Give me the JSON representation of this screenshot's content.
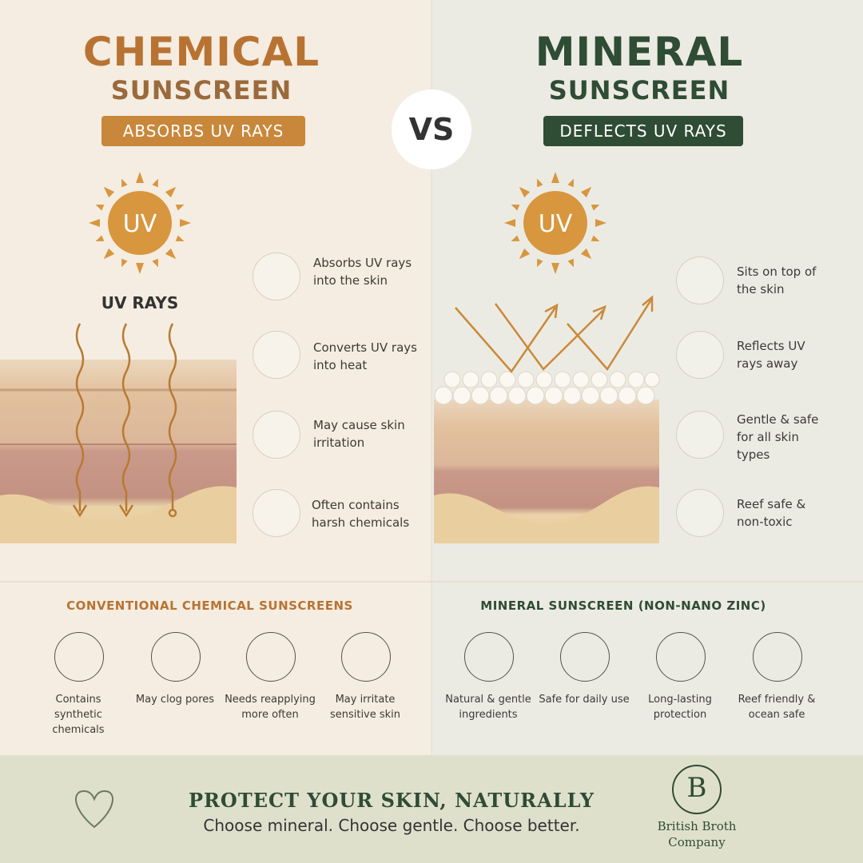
{
  "left": {
    "title": "CHEMICAL",
    "subtitle": "SUNSCREEN",
    "badge": "ABSORBS UV RAYS",
    "sun_label": "UV",
    "rays_label": "UV RAYS",
    "features": [
      "Absorbs UV rays into the skin",
      "Converts UV rays into heat",
      "May cause skin irritation",
      "Often contains harsh chemicals"
    ]
  },
  "vs": "VS",
  "right": {
    "title": "MINERAL",
    "subtitle": "SUNSCREEN",
    "badge": "DEFLECTS UV RAYS",
    "sun_label": "UV",
    "features": [
      "Sits on top of the skin",
      "Reflects UV rays away",
      "Gentle & safe for all skin types",
      "Reef safe & non-toxic"
    ]
  },
  "bottom_left": {
    "heading": "CONVENTIONAL CHEMICAL SUNSCREENS",
    "items": [
      "Contains synthetic chemicals",
      "May clog pores",
      "Needs reapplying more often",
      "May irritate sensitive skin"
    ]
  },
  "bottom_right": {
    "heading": "MINERAL SUNSCREEN (NON-NANO ZINC)",
    "items": [
      "Natural & gentle ingredients",
      "Safe for daily use",
      "Long-lasting protection",
      "Reef friendly & ocean safe"
    ]
  },
  "footer": {
    "headline": "PROTECT YOUR SKIN, NATURALLY",
    "tagline": "Choose mineral. Choose gentle. Choose better.",
    "brand_initial": "B",
    "brand_name": "British Broth Company"
  }
}
